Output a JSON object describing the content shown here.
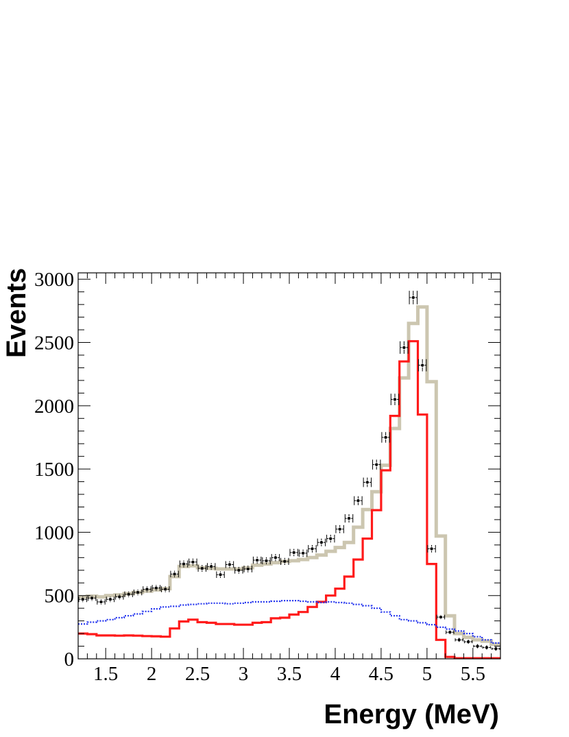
{
  "chart_data": {
    "type": "histogram",
    "title": "",
    "xlabel": "Energy (MeV)",
    "ylabel": "Events",
    "xlim": [
      1.2,
      5.8
    ],
    "ylim": [
      0,
      3050
    ],
    "x_ticks": [
      1.5,
      2,
      2.5,
      3,
      3.5,
      4,
      4.5,
      5,
      5.5
    ],
    "y_ticks": [
      0,
      500,
      1000,
      1500,
      2000,
      2500,
      3000
    ],
    "x_tick_labels": [
      "1.5",
      "2",
      "2.5",
      "3",
      "3.5",
      "4",
      "4.5",
      "5",
      "5.5"
    ],
    "y_tick_labels": [
      "0",
      "500",
      "1000",
      "1500",
      "2000",
      "2500",
      "3000"
    ],
    "bin_edges": [
      1.2,
      1.3,
      1.4,
      1.5,
      1.6,
      1.7,
      1.8,
      1.9,
      2.0,
      2.1,
      2.2,
      2.3,
      2.4,
      2.5,
      2.6,
      2.7,
      2.8,
      2.9,
      3.0,
      3.1,
      3.2,
      3.3,
      3.4,
      3.5,
      3.6,
      3.7,
      3.8,
      3.9,
      4.0,
      4.1,
      4.2,
      4.3,
      4.4,
      4.5,
      4.6,
      4.7,
      4.8,
      4.9,
      5.0,
      5.1,
      5.2,
      5.3,
      5.4,
      5.5,
      5.6,
      5.7,
      5.8
    ],
    "legend": "none",
    "grid": false,
    "colors": {
      "total_fit": "#ccc6b0",
      "signal": "#ff1a1a",
      "background": "#2233ee",
      "data": "#000000",
      "frame": "#000000"
    },
    "series": [
      {
        "style": "thick-gray-step",
        "values": [
          490,
          495,
          490,
          500,
          505,
          515,
          525,
          535,
          545,
          555,
          650,
          730,
          735,
          720,
          715,
          710,
          710,
          710,
          720,
          740,
          750,
          760,
          770,
          775,
          785,
          800,
          820,
          850,
          880,
          920,
          1040,
          1180,
          1320,
          1530,
          1820,
          2220,
          2650,
          2780,
          2190,
          970,
          340,
          200,
          170,
          150,
          140,
          115
        ]
      },
      {
        "style": "red-step",
        "values": [
          200,
          195,
          185,
          185,
          183,
          185,
          183,
          180,
          178,
          175,
          240,
          295,
          310,
          290,
          285,
          275,
          275,
          270,
          270,
          285,
          290,
          320,
          325,
          350,
          370,
          410,
          450,
          500,
          555,
          650,
          785,
          950,
          1175,
          1490,
          1920,
          2350,
          2510,
          1930,
          750,
          150,
          15,
          5,
          5,
          5,
          5,
          5
        ]
      },
      {
        "style": "blue-dotted-step",
        "values": [
          275,
          290,
          300,
          310,
          325,
          340,
          355,
          375,
          395,
          410,
          415,
          425,
          430,
          435,
          440,
          440,
          435,
          440,
          445,
          450,
          450,
          455,
          460,
          460,
          455,
          450,
          445,
          450,
          445,
          440,
          430,
          420,
          400,
          370,
          340,
          310,
          300,
          285,
          270,
          250,
          235,
          220,
          200,
          175,
          150,
          125
        ]
      },
      {
        "style": "data-points",
        "values": [
          470,
          480,
          450,
          470,
          490,
          510,
          525,
          550,
          560,
          550,
          670,
          750,
          765,
          715,
          730,
          665,
          745,
          700,
          710,
          780,
          775,
          800,
          770,
          840,
          835,
          870,
          920,
          950,
          1025,
          1110,
          1250,
          1395,
          1535,
          1750,
          2050,
          2460,
          2855,
          2320,
          870,
          330,
          210,
          150,
          135,
          100,
          90,
          80
        ]
      }
    ]
  }
}
